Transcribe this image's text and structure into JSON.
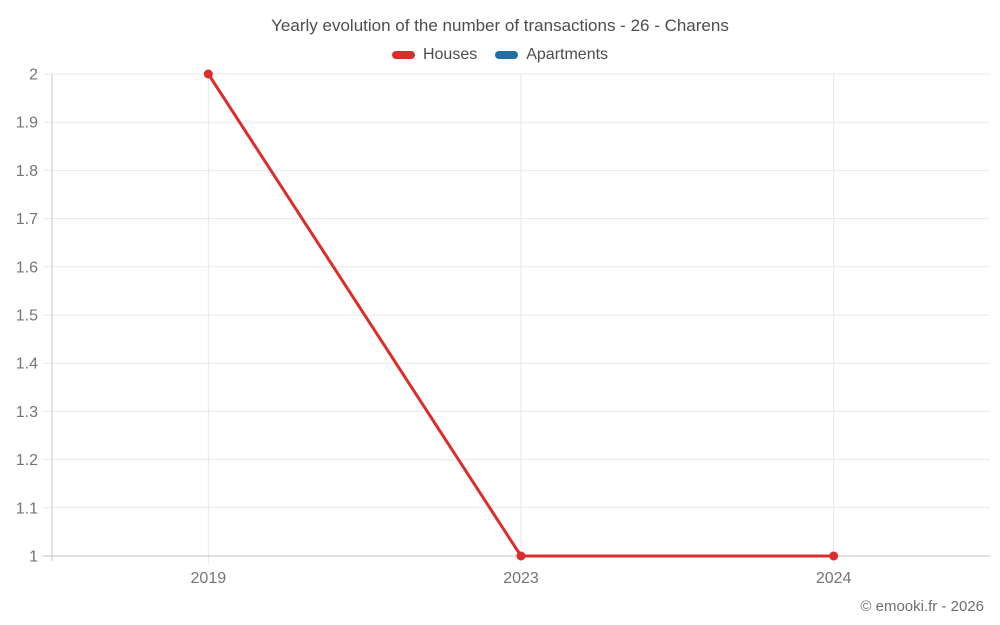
{
  "chart": {
    "title": "Yearly evolution of the number of transactions - 26 - Charens",
    "watermark": "© emooki.fr - 2026"
  },
  "legend": {
    "items": [
      {
        "label": "Houses",
        "color": "#dd2c2c"
      },
      {
        "label": "Apartments",
        "color": "#1f6fa0"
      }
    ]
  },
  "chart_data": {
    "type": "line",
    "title": "Yearly evolution of the number of transactions - 26 - Charens",
    "categories": [
      "2019",
      "2023",
      "2024"
    ],
    "series": [
      {
        "name": "Houses",
        "color": "#dd2c2c",
        "values": [
          2,
          1,
          1
        ]
      },
      {
        "name": "Apartments",
        "color": "#1f6fa0",
        "values": []
      }
    ],
    "xlabel": "",
    "ylabel": "",
    "ylim": [
      1,
      2
    ],
    "ytick_step": 0.1,
    "ytick_labels": [
      "1",
      "1.1",
      "1.2",
      "1.3",
      "1.4",
      "1.5",
      "1.6",
      "1.7",
      "1.8",
      "1.9",
      "2"
    ],
    "grid": true,
    "legend_position": "top"
  },
  "colors": {
    "grid": "#e9e9e9",
    "axis": "#c9c9c9",
    "baseline": "#c2c2c2",
    "tick_label": "#757575",
    "title": "#4d4d4d",
    "watermark": "#6f6f6f"
  }
}
